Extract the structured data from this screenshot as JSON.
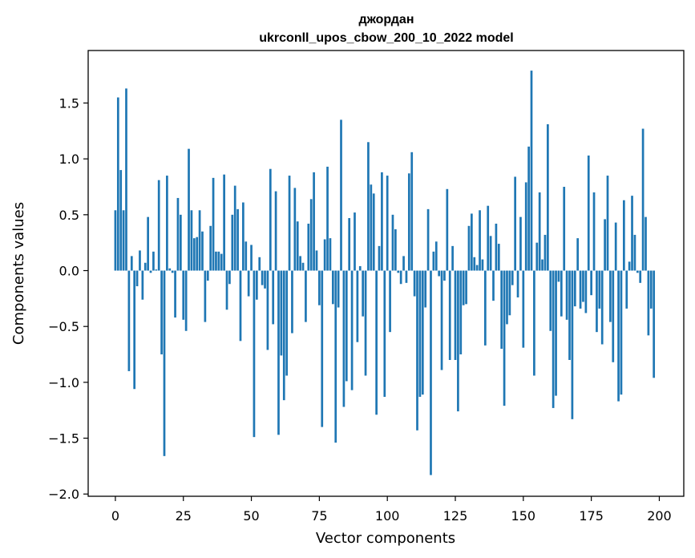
{
  "chart_data": {
    "type": "bar",
    "title_line1": "джордан",
    "title_line2": "ukrconll_upos_cbow_200_10_2022 model",
    "xlabel": "Vector components",
    "ylabel": "Components values",
    "xlim": [
      -10,
      209
    ],
    "ylim": [
      -2.02,
      1.97
    ],
    "xticks": [
      0,
      25,
      50,
      75,
      100,
      125,
      150,
      175,
      200
    ],
    "yticks": [
      -2.0,
      -1.5,
      -1.0,
      -0.5,
      0.0,
      0.5,
      1.0,
      1.5
    ],
    "ytick_labels": [
      "−2.0",
      "−1.5",
      "−1.0",
      "−0.5",
      "0.0",
      "0.5",
      "1.0",
      "1.5"
    ],
    "bar_color": "#1f77b4",
    "values": [
      0.54,
      1.55,
      0.9,
      0.54,
      1.63,
      -0.9,
      0.13,
      -1.06,
      -0.14,
      0.18,
      -0.26,
      0.07,
      0.48,
      -0.02,
      0.17,
      0.01,
      0.81,
      -0.75,
      -1.66,
      0.85,
      0.02,
      -0.02,
      -0.42,
      0.65,
      0.5,
      -0.44,
      -0.54,
      1.09,
      0.54,
      0.29,
      0.3,
      0.54,
      0.35,
      -0.46,
      -0.09,
      0.4,
      0.83,
      0.17,
      0.17,
      0.15,
      0.86,
      -0.35,
      -0.12,
      0.5,
      0.76,
      0.55,
      -0.63,
      0.61,
      0.26,
      -0.23,
      0.23,
      -1.49,
      -0.26,
      0.12,
      -0.13,
      -0.16,
      -0.71,
      0.91,
      -0.48,
      0.71,
      -1.47,
      -0.76,
      -1.16,
      -0.94,
      0.85,
      -0.56,
      0.74,
      0.44,
      0.13,
      0.07,
      -0.46,
      0.42,
      0.64,
      0.88,
      0.18,
      -0.31,
      -1.4,
      0.28,
      0.93,
      0.29,
      -0.3,
      -1.54,
      -0.33,
      1.35,
      -1.22,
      -0.99,
      0.47,
      -1.07,
      0.52,
      -0.64,
      0.04,
      -0.41,
      -0.94,
      1.15,
      0.77,
      0.69,
      -1.29,
      0.22,
      0.88,
      -1.13,
      0.85,
      -0.55,
      0.5,
      0.37,
      -0.02,
      -0.12,
      0.13,
      -0.11,
      0.87,
      1.06,
      -0.23,
      -1.43,
      -1.13,
      -1.11,
      -0.33,
      0.55,
      -1.83,
      0.17,
      0.26,
      -0.05,
      -0.89,
      -0.09,
      0.73,
      -0.8,
      0.22,
      -0.8,
      -1.26,
      -0.75,
      -0.31,
      -0.3,
      0.4,
      0.51,
      0.12,
      0.05,
      0.54,
      0.1,
      -0.67,
      0.58,
      0.31,
      -0.27,
      0.42,
      0.24,
      -0.7,
      -1.21,
      -0.48,
      -0.4,
      -0.13,
      0.84,
      -0.24,
      0.48,
      -0.69,
      0.79,
      1.11,
      1.79,
      -0.94,
      0.25,
      0.7,
      0.1,
      0.32,
      1.31,
      -0.54,
      -1.23,
      -1.12,
      -0.1,
      -0.41,
      0.75,
      -0.44,
      -0.8,
      -1.33,
      -0.32,
      0.29,
      -0.34,
      -0.28,
      -0.38,
      1.03,
      -0.22,
      0.7,
      -0.55,
      -0.34,
      -0.66,
      0.46,
      0.85,
      -0.46,
      -0.82,
      0.43,
      -1.17,
      -1.11,
      0.63,
      -0.34,
      0.08,
      0.67,
      0.32,
      -0.02,
      -0.11,
      1.27,
      0.48,
      -0.58,
      -0.34,
      -0.96
    ]
  }
}
